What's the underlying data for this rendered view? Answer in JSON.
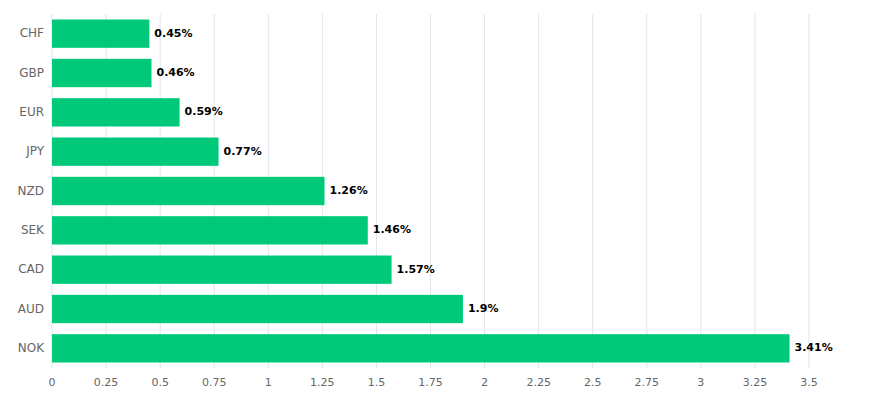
{
  "chart_data": {
    "type": "bar",
    "orientation": "horizontal",
    "categories": [
      "NOK",
      "AUD",
      "CAD",
      "SEK",
      "NZD",
      "JPY",
      "EUR",
      "GBP",
      "CHF"
    ],
    "values": [
      3.41,
      1.9,
      1.57,
      1.46,
      1.26,
      0.77,
      0.59,
      0.46,
      0.45
    ],
    "value_labels": [
      "3.41%",
      "1.9%",
      "1.57%",
      "1.46%",
      "1.26%",
      "0.77%",
      "0.59%",
      "0.46%",
      "0.45%"
    ],
    "data_labels": true,
    "color": "#00C97A",
    "xlim": [
      0,
      3.5
    ],
    "xticks": [
      0,
      0.25,
      0.5,
      0.75,
      1,
      1.25,
      1.5,
      1.75,
      2,
      2.25,
      2.5,
      2.75,
      3,
      3.25,
      3.5
    ],
    "grid": true
  }
}
